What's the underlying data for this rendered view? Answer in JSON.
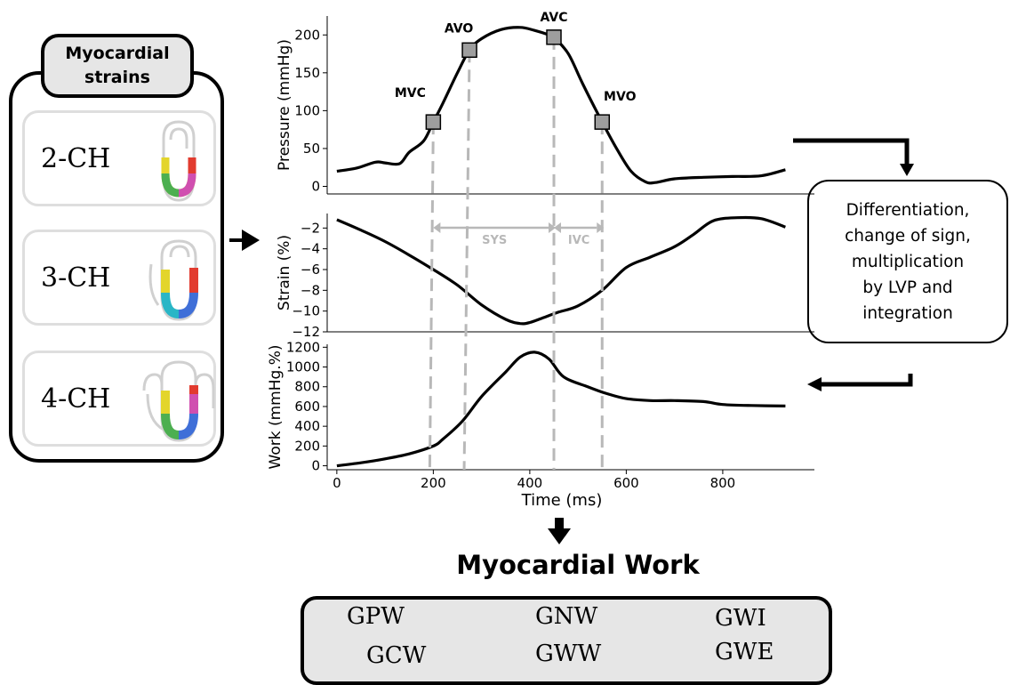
{
  "strains": {
    "header_line1": "Myocardial",
    "header_line2": "strains",
    "views": [
      "2-CH",
      "3-CH",
      "4-CH"
    ]
  },
  "process": {
    "lines": [
      "Differentiation,",
      "change of sign,",
      "multiplication",
      "by LVP and",
      "integration"
    ]
  },
  "output": {
    "title": "Myocardial Work",
    "indices": [
      "GPW",
      "GNW",
      "GWI",
      "GCW",
      "GWW",
      "GWE"
    ]
  },
  "colors": {
    "curve": "#000000",
    "marker_fill": "#9e9e9e",
    "event_line": "#b8b8b8",
    "panel_fill": "#e6e6e6",
    "segments": [
      "#e3d52b",
      "#4caf50",
      "#29b6c6",
      "#3f6fd8",
      "#d04fb0",
      "#e23b2f"
    ]
  },
  "chart_data": {
    "type": "line",
    "xlabel": "Time (ms)",
    "xticks": [
      0,
      200,
      400,
      600,
      800
    ],
    "xlim": [
      -20,
      990
    ],
    "events": [
      {
        "label": "MVC",
        "x": 200,
        "pressure": 85
      },
      {
        "label": "AVO",
        "x": 275,
        "pressure": 180
      },
      {
        "label": "AVC",
        "x": 450,
        "pressure": 197
      },
      {
        "label": "MVO",
        "x": 550,
        "pressure": 85
      }
    ],
    "phase_labels": [
      {
        "label": "SYS",
        "x_start": 200,
        "x_end": 450
      },
      {
        "label": "IVC",
        "x_start": 450,
        "x_end": 550
      }
    ],
    "panels": [
      {
        "name": "pressure",
        "ylabel": "Pressure (mmHg)",
        "ylim": [
          -10,
          225
        ],
        "yticks": [
          0,
          50,
          100,
          150,
          200
        ],
        "x": [
          0,
          40,
          80,
          100,
          130,
          150,
          180,
          200,
          220,
          250,
          275,
          300,
          340,
          380,
          410,
          440,
          450,
          480,
          510,
          550,
          580,
          610,
          640,
          660,
          700,
          760,
          820,
          880,
          930
        ],
        "y": [
          20,
          24,
          32,
          31,
          30,
          45,
          60,
          85,
          110,
          150,
          180,
          195,
          207,
          210,
          206,
          200,
          197,
          175,
          135,
          85,
          50,
          20,
          6,
          5,
          10,
          12,
          13,
          14,
          22
        ]
      },
      {
        "name": "strain",
        "ylabel": "Strain (%)",
        "ylim": [
          -12,
          -0.6
        ],
        "yticks": [
          -2,
          -4,
          -6,
          -8,
          -10,
          -12
        ],
        "x": [
          0,
          50,
          100,
          150,
          200,
          250,
          300,
          350,
          380,
          400,
          430,
          460,
          500,
          550,
          600,
          650,
          700,
          740,
          780,
          830,
          880,
          930
        ],
        "y": [
          -1.2,
          -2.2,
          -3.3,
          -4.6,
          -6.0,
          -7.5,
          -9.4,
          -10.8,
          -11.2,
          -11.1,
          -10.6,
          -10.1,
          -9.5,
          -8.0,
          -5.8,
          -4.8,
          -3.8,
          -2.6,
          -1.3,
          -1.0,
          -1.1,
          -1.9
        ]
      },
      {
        "name": "work",
        "ylabel": "Work (mmHg.%)",
        "ylim": [
          -40,
          1230
        ],
        "yticks": [
          0,
          200,
          400,
          600,
          800,
          1000,
          1200
        ],
        "x": [
          0,
          50,
          100,
          150,
          200,
          220,
          260,
          300,
          350,
          380,
          410,
          440,
          470,
          520,
          560,
          600,
          650,
          700,
          760,
          800,
          860,
          930
        ],
        "y": [
          0,
          30,
          70,
          120,
          200,
          270,
          450,
          700,
          950,
          1100,
          1150,
          1080,
          900,
          800,
          730,
          680,
          660,
          660,
          650,
          620,
          610,
          605
        ]
      }
    ]
  }
}
